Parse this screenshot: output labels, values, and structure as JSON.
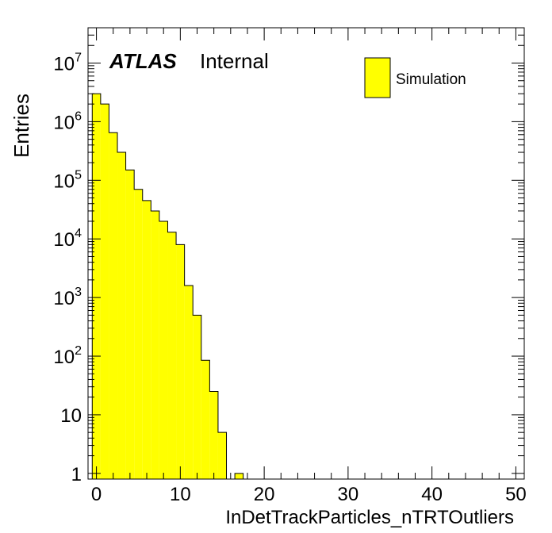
{
  "chart_data": {
    "type": "bar",
    "style": "histogram-step",
    "xlabel": "InDetTrackParticles_nTRTOutliers",
    "ylabel": "Entries",
    "xlim": [
      -1,
      51
    ],
    "ylim": [
      0.8,
      40000000
    ],
    "yscale": "log",
    "grid": false,
    "legend_position": "top-right",
    "fill_color": "#ffff00",
    "line_color": "#000000",
    "bin_width": 1,
    "x_ticks": [
      0,
      10,
      20,
      30,
      40,
      50
    ],
    "y_ticks": [
      {
        "value": 1,
        "base": "1",
        "exp": ""
      },
      {
        "value": 10,
        "base": "10",
        "exp": ""
      },
      {
        "value": 100,
        "base": "10",
        "exp": "2"
      },
      {
        "value": 1000,
        "base": "10",
        "exp": "3"
      },
      {
        "value": 10000,
        "base": "10",
        "exp": "4"
      },
      {
        "value": 100000,
        "base": "10",
        "exp": "5"
      },
      {
        "value": 1000000,
        "base": "10",
        "exp": "6"
      },
      {
        "value": 10000000,
        "base": "10",
        "exp": "7"
      }
    ],
    "series": [
      {
        "name": "Simulation",
        "bins": [
          {
            "x": 0,
            "value": 3000000
          },
          {
            "x": 1,
            "value": 2000000
          },
          {
            "x": 2,
            "value": 650000
          },
          {
            "x": 3,
            "value": 300000
          },
          {
            "x": 4,
            "value": 150000
          },
          {
            "x": 5,
            "value": 70000
          },
          {
            "x": 6,
            "value": 45000
          },
          {
            "x": 7,
            "value": 30000
          },
          {
            "x": 8,
            "value": 20000
          },
          {
            "x": 9,
            "value": 13000
          },
          {
            "x": 10,
            "value": 8000
          },
          {
            "x": 11,
            "value": 1600
          },
          {
            "x": 12,
            "value": 500
          },
          {
            "x": 13,
            "value": 85
          },
          {
            "x": 14,
            "value": 25
          },
          {
            "x": 15,
            "value": 5
          },
          {
            "x": 17,
            "value": 1
          }
        ]
      }
    ],
    "annotations": {
      "experiment": "ATLAS",
      "status": "Internal"
    }
  }
}
